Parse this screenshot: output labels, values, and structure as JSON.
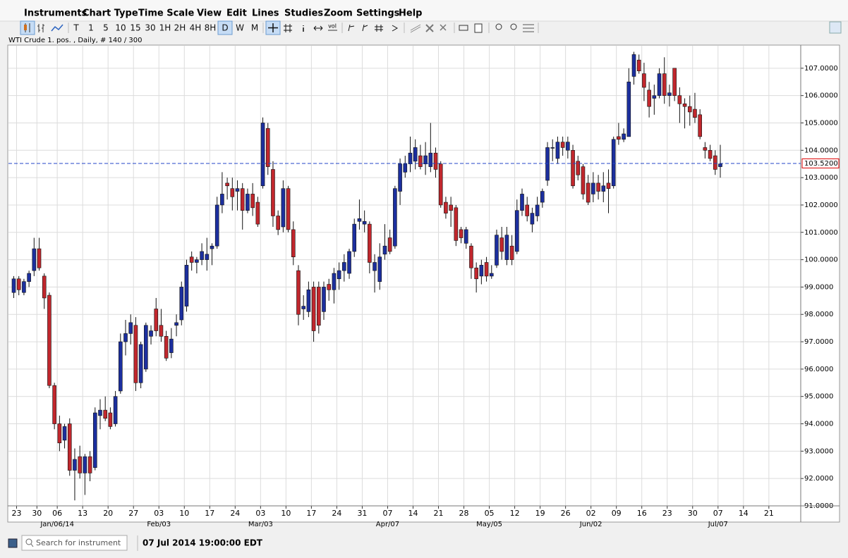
{
  "menu": [
    "Instruments",
    "Chart Type",
    "Time Scale",
    "View",
    "Edit",
    "Lines",
    "Studies",
    "Zoom",
    "Settings",
    "Help"
  ],
  "toolbar": {
    "intervals": [
      "T",
      "1",
      "5",
      "10",
      "15",
      "30",
      "1H",
      "2H",
      "4H",
      "8H",
      "D",
      "W",
      "M"
    ],
    "selected": "D",
    "vol_label": "vol"
  },
  "info": "WTI Crude 1. pos. , Daily, # 140 / 300",
  "chart_data": {
    "type": "candlestick",
    "categories": [
      "23",
      null,
      null,
      null,
      "30",
      null,
      null,
      null,
      "06",
      null,
      null,
      null,
      null,
      "13",
      null,
      null,
      null,
      null,
      "20",
      null,
      null,
      null,
      null,
      "27",
      null,
      null,
      null,
      null,
      "03",
      null,
      null,
      null,
      null,
      "10",
      null,
      null,
      null,
      null,
      "17",
      null,
      null,
      null,
      null,
      "24",
      null,
      null,
      null,
      null,
      "03",
      null,
      null,
      null,
      null,
      "10",
      null,
      null,
      null,
      null,
      "17",
      null,
      null,
      null,
      null,
      "24",
      null,
      null,
      null,
      null,
      "31",
      null,
      null,
      null,
      null,
      "07",
      null,
      null,
      null,
      null,
      "14",
      null,
      null,
      null,
      null,
      "21",
      null,
      null,
      null,
      null,
      "28",
      null,
      null,
      null,
      null,
      "05",
      null,
      null,
      null,
      null,
      "12",
      null,
      null,
      null,
      null,
      "19",
      null,
      null,
      null,
      null,
      "26",
      null,
      null,
      null,
      null,
      "02",
      null,
      null,
      null,
      null,
      "09",
      null,
      null,
      null,
      null,
      "16",
      null,
      null,
      null,
      null,
      "23",
      null,
      null,
      null,
      null,
      "30",
      null,
      null,
      null,
      null,
      "07",
      null,
      null,
      null,
      null,
      "14",
      null,
      null,
      null,
      null,
      "21",
      null,
      null,
      null,
      null
    ],
    "month_labels": [
      null,
      null,
      null,
      null,
      null,
      null,
      null,
      null,
      "Jan/06/14",
      null,
      null,
      null,
      null,
      null,
      null,
      null,
      null,
      null,
      null,
      null,
      null,
      null,
      null,
      null,
      null,
      null,
      null,
      null,
      "Feb/03",
      null,
      null,
      null,
      null,
      null,
      null,
      null,
      null,
      null,
      null,
      null,
      null,
      null,
      null,
      null,
      null,
      null,
      null,
      null,
      "Mar/03",
      null,
      null,
      null,
      null,
      null,
      null,
      null,
      null,
      null,
      null,
      null,
      null,
      null,
      null,
      null,
      null,
      null,
      null,
      null,
      null,
      null,
      null,
      null,
      null,
      "Apr/07",
      null,
      null,
      null,
      null,
      null,
      null,
      null,
      null,
      null,
      null,
      null,
      null,
      null,
      null,
      null,
      null,
      null,
      null,
      null,
      "May/05",
      null,
      null,
      null,
      null,
      null,
      null,
      null,
      null,
      null,
      null,
      null,
      null,
      null,
      null,
      null,
      null,
      null,
      null,
      null,
      "Jun/02",
      null,
      null,
      null,
      null,
      null,
      null,
      null,
      null,
      null,
      null,
      null,
      null,
      null,
      null,
      null,
      null,
      null,
      null,
      null,
      null,
      null,
      null,
      null,
      null,
      "Jul/07",
      null,
      null,
      null,
      null,
      null,
      null,
      null,
      null,
      null,
      null,
      null,
      null,
      null,
      null
    ],
    "open": [
      98.8,
      99.3,
      98.8,
      99.2,
      99.6,
      100.4,
      99.4,
      98.7,
      95.4,
      94.0,
      93.4,
      94.0,
      92.3,
      92.8,
      92.2,
      92.8,
      92.4,
      94.3,
      94.5,
      94.4,
      94.0,
      95.2,
      97.0,
      97.3,
      97.6,
      95.5,
      96.0,
      97.2,
      98.2,
      97.6,
      97.2,
      96.6,
      97.6,
      97.8,
      98.3,
      100.1,
      99.9,
      100.0,
      100.0,
      100.4,
      100.5,
      102.0,
      102.8,
      102.6,
      102.5,
      102.6,
      101.8,
      102.4,
      102.1,
      102.7,
      104.8,
      103.3,
      101.6,
      101.2,
      102.6,
      101.1,
      99.6,
      98.2,
      98.1,
      99.0,
      99.0,
      98.1,
      99.1,
      98.9,
      99.3,
      99.6,
      99.5,
      100.3,
      101.4,
      101.3,
      101.3,
      99.6,
      99.2,
      100.2,
      100.8,
      100.5,
      102.5,
      103.2,
      103.5,
      103.6,
      103.8,
      103.5,
      103.4,
      103.9,
      103.5,
      102.1,
      102.0,
      101.9,
      101.1,
      100.6,
      100.5,
      99.7,
      99.4,
      99.9,
      99.4,
      99.8,
      100.8,
      100.0,
      100.5,
      100.3,
      101.8,
      102.0,
      101.3,
      101.6,
      102.1,
      102.9,
      104.1,
      103.7,
      104.3,
      104.0,
      104.0,
      103.6,
      103.4,
      102.8,
      102.4,
      102.8,
      102.5,
      102.8,
      102.7,
      104.5,
      104.4,
      104.5,
      106.7,
      107.3,
      106.8,
      106.2,
      105.9,
      106.0,
      106.8,
      106.0,
      107.0,
      106.0,
      105.7,
      105.6,
      105.5,
      105.3,
      104.1,
      104.0,
      103.8,
      103.4,
      null,
      null,
      null,
      null,
      null,
      null,
      null,
      null,
      null,
      null,
      null,
      null,
      null
    ],
    "high": [
      99.4,
      99.4,
      99.3,
      99.6,
      100.8,
      100.8,
      99.5,
      98.8,
      95.5,
      94.3,
      94.0,
      94.2,
      93.1,
      93.2,
      92.9,
      93.0,
      94.6,
      94.9,
      95.0,
      94.6,
      95.2,
      97.3,
      97.8,
      98.0,
      97.9,
      97.0,
      97.7,
      97.6,
      98.6,
      98.2,
      97.4,
      97.5,
      98.0,
      99.2,
      100.0,
      100.3,
      100.1,
      100.6,
      100.8,
      100.6,
      102.3,
      103.2,
      103.0,
      103.0,
      102.9,
      102.8,
      102.6,
      102.8,
      102.3,
      105.2,
      105.0,
      103.6,
      101.8,
      102.9,
      102.7,
      101.4,
      99.8,
      98.7,
      99.2,
      99.2,
      99.2,
      99.2,
      99.3,
      99.7,
      99.9,
      100.2,
      100.4,
      101.5,
      102.2,
      101.8,
      101.4,
      100.2,
      100.6,
      101.3,
      101.1,
      102.7,
      103.7,
      103.8,
      104.5,
      104.4,
      104.2,
      104.3,
      105.0,
      104.1,
      103.6,
      102.3,
      102.3,
      102.0,
      101.2,
      101.2,
      100.6,
      99.9,
      100.0,
      100.1,
      99.8,
      101.1,
      101.2,
      101.2,
      100.9,
      102.2,
      102.6,
      102.3,
      101.9,
      102.3,
      102.6,
      104.3,
      104.4,
      104.5,
      104.5,
      104.5,
      104.2,
      103.8,
      103.5,
      103.1,
      103.2,
      103.1,
      103.2,
      103.3,
      104.5,
      105.0,
      104.8,
      107.0,
      107.6,
      107.5,
      107.2,
      106.5,
      106.4,
      107.0,
      107.4,
      106.4,
      107.0,
      106.3,
      105.9,
      106.0,
      106.1,
      105.5,
      104.3,
      104.2,
      104.0,
      104.2,
      null,
      null,
      null,
      null,
      null,
      null,
      null,
      null,
      null,
      null,
      null,
      null,
      null
    ],
    "low": [
      98.6,
      98.7,
      98.7,
      99.0,
      99.4,
      99.6,
      98.2,
      95.3,
      93.8,
      93.0,
      93.1,
      92.1,
      91.2,
      92.0,
      91.4,
      91.9,
      92.3,
      93.8,
      94.1,
      93.8,
      93.9,
      95.1,
      96.5,
      96.9,
      95.2,
      95.3,
      95.9,
      96.9,
      97.2,
      97.0,
      96.3,
      96.4,
      97.2,
      97.6,
      98.1,
      99.6,
      99.5,
      99.8,
      99.6,
      99.8,
      100.4,
      101.7,
      102.2,
      101.8,
      101.8,
      101.1,
      101.7,
      101.6,
      101.2,
      102.6,
      103.1,
      101.2,
      100.9,
      101.0,
      101.0,
      99.8,
      97.6,
      97.8,
      97.9,
      97.0,
      97.3,
      97.8,
      98.5,
      98.4,
      98.9,
      99.2,
      99.3,
      100.1,
      101.1,
      101.0,
      99.5,
      98.8,
      98.9,
      100.0,
      100.2,
      100.4,
      102.0,
      103.0,
      103.2,
      103.3,
      103.3,
      103.1,
      103.2,
      103.0,
      101.9,
      101.5,
      101.2,
      100.5,
      100.6,
      100.4,
      99.3,
      98.8,
      99.1,
      99.2,
      99.3,
      99.7,
      100.0,
      99.8,
      99.8,
      100.2,
      101.6,
      101.4,
      101.0,
      101.4,
      101.9,
      102.7,
      103.6,
      103.5,
      103.8,
      103.7,
      102.6,
      102.9,
      102.2,
      102.0,
      102.1,
      102.2,
      102.1,
      101.7,
      102.6,
      104.2,
      104.3,
      104.5,
      106.4,
      106.8,
      105.8,
      105.2,
      105.3,
      105.9,
      105.7,
      105.6,
      105.8,
      105.0,
      104.8,
      104.9,
      105.0,
      104.4,
      103.7,
      103.6,
      103.1,
      103.0,
      null,
      null,
      null,
      null,
      null,
      null,
      null,
      null,
      null,
      null,
      null,
      null,
      null
    ],
    "close": [
      99.3,
      98.9,
      99.2,
      99.5,
      100.4,
      99.7,
      98.6,
      95.4,
      94.0,
      93.3,
      93.9,
      92.3,
      92.7,
      92.2,
      92.8,
      92.2,
      94.4,
      94.5,
      94.2,
      93.9,
      95.0,
      97.0,
      97.3,
      97.7,
      95.5,
      96.9,
      97.6,
      97.4,
      97.4,
      97.2,
      96.4,
      97.1,
      97.7,
      99.0,
      99.8,
      99.9,
      100.0,
      100.3,
      100.2,
      100.5,
      102.0,
      102.4,
      102.7,
      102.3,
      102.6,
      101.8,
      102.4,
      101.9,
      101.3,
      105.0,
      103.4,
      101.6,
      101.1,
      102.6,
      101.1,
      100.1,
      98.0,
      98.3,
      98.9,
      97.4,
      97.6,
      99.0,
      98.9,
      99.5,
      99.6,
      99.9,
      100.3,
      101.3,
      101.5,
      101.4,
      99.9,
      99.9,
      100.1,
      100.5,
      100.3,
      102.6,
      103.5,
      103.5,
      103.9,
      104.1,
      103.4,
      103.8,
      103.9,
      103.3,
      102.0,
      101.7,
      101.8,
      100.7,
      100.8,
      101.1,
      99.7,
      99.3,
      99.8,
      99.4,
      99.5,
      100.9,
      100.3,
      100.9,
      100.0,
      101.8,
      102.4,
      101.6,
      101.7,
      102.0,
      102.5,
      104.1,
      104.1,
      104.3,
      104.1,
      104.3,
      102.7,
      103.1,
      102.4,
      102.1,
      102.8,
      102.5,
      102.7,
      102.6,
      104.4,
      104.4,
      104.6,
      106.5,
      107.5,
      106.9,
      106.3,
      105.6,
      106.0,
      106.8,
      106.0,
      106.1,
      106.0,
      105.7,
      105.6,
      105.4,
      105.2,
      104.5,
      104.0,
      103.7,
      103.3,
      103.5,
      null,
      null,
      null,
      null,
      null,
      null,
      null,
      null,
      null,
      null,
      null,
      null,
      null
    ],
    "ylim": [
      91,
      107.82
    ],
    "yticks": [
      {
        "value": 91,
        "label": "91.0000"
      },
      {
        "value": 92,
        "label": "92.0000"
      },
      {
        "value": 93,
        "label": "93.0000"
      },
      {
        "value": 94,
        "label": "94.0000"
      },
      {
        "value": 95,
        "label": "95.0000"
      },
      {
        "value": 96,
        "label": "96.0000"
      },
      {
        "value": 97,
        "label": "97.0000"
      },
      {
        "value": 98,
        "label": "98.0000"
      },
      {
        "value": 99,
        "label": "99.0000"
      },
      {
        "value": 100,
        "label": "100.0000"
      },
      {
        "value": 101,
        "label": "101.0000"
      },
      {
        "value": 102,
        "label": "102.0000"
      },
      {
        "value": 103,
        "label": "103.0000"
      },
      {
        "value": 104,
        "label": "104.0000"
      },
      {
        "value": 105,
        "label": "105.0000"
      },
      {
        "value": 106,
        "label": "106.0000"
      },
      {
        "value": 107,
        "label": "107.0000"
      }
    ],
    "grid": true,
    "up_color": "#1c2f9e",
    "down_color": "#c1272d",
    "last_price": {
      "value": 103.52,
      "label": "103.5200"
    },
    "last_price_color": "#2346c8"
  },
  "status": {
    "search_placeholder": "Search for instrument",
    "datetime": "07 Jul 2014 19:00:00 EDT"
  }
}
